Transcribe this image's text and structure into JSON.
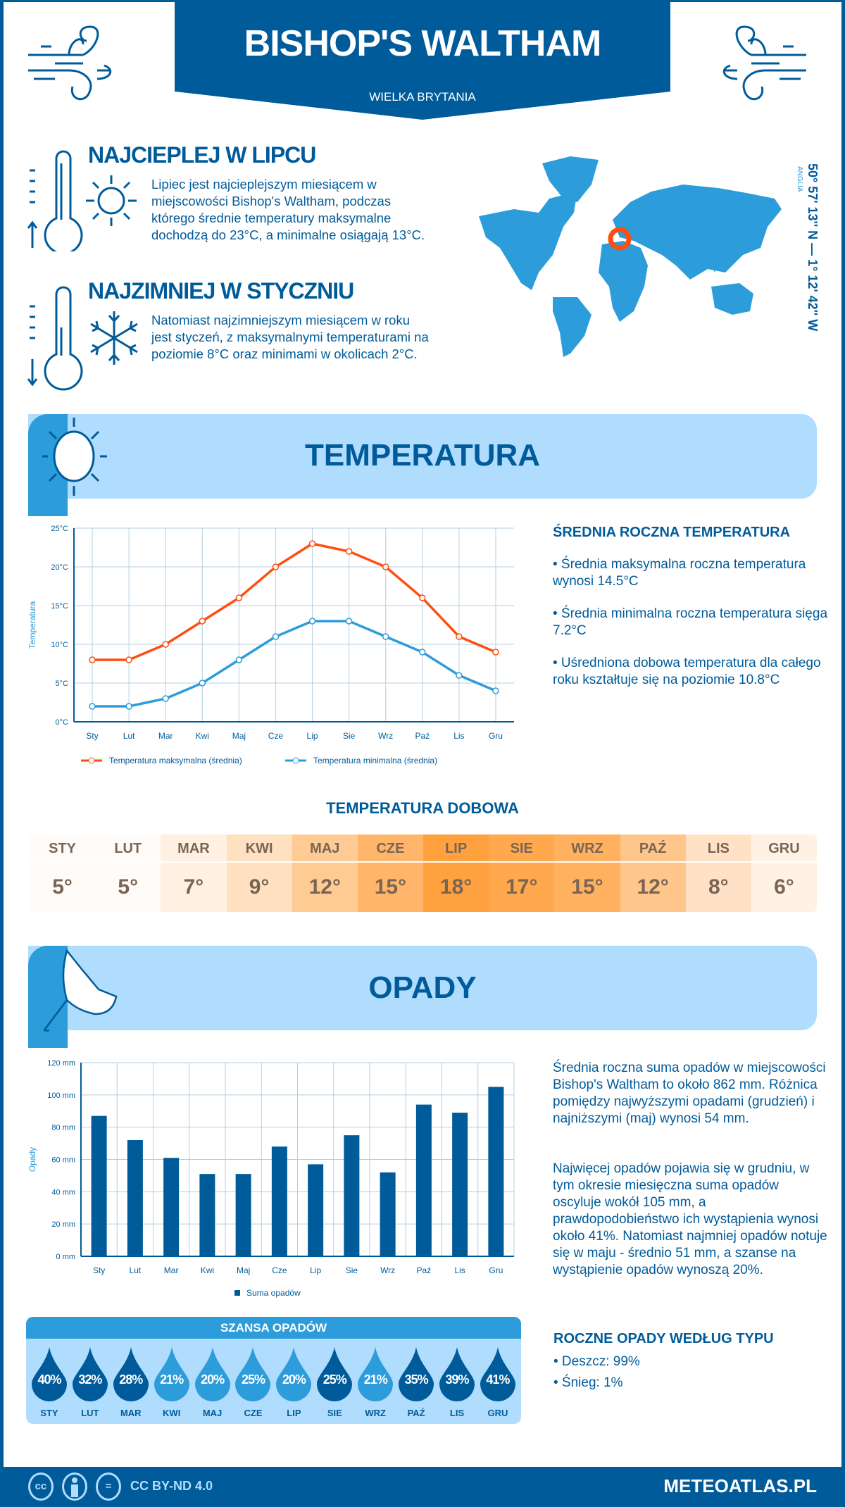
{
  "header": {
    "title": "BISHOP'S WALTHAM",
    "country": "WIELKA BRYTANIA"
  },
  "warmest": {
    "heading": "NAJCIEPLEJ W LIPCU",
    "text": "Lipiec jest najcieplejszym miesiącem w miejscowości Bishop's Waltham, podczas którego średnie temperatury maksymalne dochodzą do 23°C, a minimalne osiągają 13°C."
  },
  "coldest": {
    "heading": "NAJZIMNIEJ W STYCZNIU",
    "text": "Natomiast najzimniejszym miesiącem w roku jest styczeń, z maksymalnymi temperaturami na poziomie 8°C oraz minimami w okolicach 2°C."
  },
  "map": {
    "coords": "50° 57' 13'' N — 1° 12' 42'' W",
    "region": "ANGLIA",
    "marker_color": "#ff4e0f"
  },
  "temperature_section": {
    "title": "TEMPERATURA",
    "summary_title": "ŚREDNIA ROCZNA TEMPERATURA",
    "bullets": [
      "• Średnia maksymalna roczna temperatura wynosi 14.5°C",
      "• Średnia minimalna roczna temperatura sięga 7.2°C",
      "• Uśredniona dobowa temperatura dla całego roku kształtuje się na poziomie 10.8°C"
    ],
    "daily_title": "TEMPERATURA DOBOWA",
    "daily": [
      {
        "month": "STY",
        "value": "5°",
        "color": "#fffbf8"
      },
      {
        "month": "LUT",
        "value": "5°",
        "color": "#fffbf8"
      },
      {
        "month": "MAR",
        "value": "7°",
        "color": "#fff0e1"
      },
      {
        "month": "KWI",
        "value": "9°",
        "color": "#ffe0c0"
      },
      {
        "month": "MAJ",
        "value": "12°",
        "color": "#ffcb94"
      },
      {
        "month": "CZE",
        "value": "15°",
        "color": "#ffb56a"
      },
      {
        "month": "LIP",
        "value": "18°",
        "color": "#ffa13f"
      },
      {
        "month": "SIE",
        "value": "17°",
        "color": "#ffa84e"
      },
      {
        "month": "WRZ",
        "value": "15°",
        "color": "#ffb15f"
      },
      {
        "month": "PAŹ",
        "value": "12°",
        "color": "#ffc68b"
      },
      {
        "month": "LIS",
        "value": "8°",
        "color": "#ffe2c5"
      },
      {
        "month": "GRU",
        "value": "6°",
        "color": "#fff2e5"
      }
    ]
  },
  "precip_section": {
    "title": "OPADY",
    "text1": "Średnia roczna suma opadów w miejscowości Bishop's Waltham to około 862 mm. Różnica pomiędzy najwyższymi opadami (grudzień) i najniższymi (maj) wynosi 54 mm.",
    "text2": "Najwięcej opadów pojawia się w grudniu, w tym okresie miesięczna suma opadów oscyluje wokół 105 mm, a prawdopodobieństwo ich wystąpienia wynosi około 41%. Natomiast najmniej opadów notuje się w maju - średnio 51 mm, a szanse na wystąpienie opadów wynoszą 20%.",
    "type_title": "ROCZNE OPADY WEDŁUG TYPU",
    "types": [
      "• Deszcz: 99%",
      "• Śnieg: 1%"
    ],
    "chance_title": "SZANSA OPADÓW",
    "chance": [
      {
        "month": "STY",
        "value": "40%",
        "color": "#005b9a"
      },
      {
        "month": "LUT",
        "value": "32%",
        "color": "#005b9a"
      },
      {
        "month": "MAR",
        "value": "28%",
        "color": "#005b9a"
      },
      {
        "month": "KWI",
        "value": "21%",
        "color": "#2d9cdb"
      },
      {
        "month": "MAJ",
        "value": "20%",
        "color": "#2d9cdb"
      },
      {
        "month": "CZE",
        "value": "25%",
        "color": "#2d9cdb"
      },
      {
        "month": "LIP",
        "value": "20%",
        "color": "#2d9cdb"
      },
      {
        "month": "SIE",
        "value": "25%",
        "color": "#005b9a"
      },
      {
        "month": "WRZ",
        "value": "21%",
        "color": "#2d9cdb"
      },
      {
        "month": "PAŹ",
        "value": "35%",
        "color": "#005b9a"
      },
      {
        "month": "LIS",
        "value": "39%",
        "color": "#005b9a"
      },
      {
        "month": "GRU",
        "value": "41%",
        "color": "#005b9a"
      }
    ]
  },
  "footer": {
    "license": "CC BY-ND 4.0",
    "site": "METEOATLAS.PL",
    "cc": "cc",
    "eq": "="
  },
  "chart_data": [
    {
      "type": "line",
      "categories": [
        "Sty",
        "Lut",
        "Mar",
        "Kwi",
        "Maj",
        "Cze",
        "Lip",
        "Sie",
        "Wrz",
        "Paź",
        "Lis",
        "Gru"
      ],
      "ylabel": "Temperatura",
      "ylim": [
        0,
        25
      ],
      "yticks": [
        "0°C",
        "5°C",
        "10°C",
        "15°C",
        "20°C",
        "25°C"
      ],
      "grid": true,
      "legend": "bottom",
      "series": [
        {
          "name": "Temperatura maksymalna (średnia)",
          "color": "#ff4e0f",
          "values": [
            8,
            8,
            10,
            13,
            16,
            20,
            23,
            22,
            20,
            16,
            11,
            9
          ]
        },
        {
          "name": "Temperatura minimalna (średnia)",
          "color": "#2d9cdb",
          "values": [
            2,
            2,
            3,
            5,
            8,
            11,
            13,
            13,
            11,
            9,
            6,
            4
          ]
        }
      ]
    },
    {
      "type": "bar",
      "categories": [
        "Sty",
        "Lut",
        "Mar",
        "Kwi",
        "Maj",
        "Cze",
        "Lip",
        "Sie",
        "Wrz",
        "Paź",
        "Lis",
        "Gru"
      ],
      "ylabel": "Opady",
      "ylim": [
        0,
        120
      ],
      "yticks": [
        "0 mm",
        "20 mm",
        "40 mm",
        "60 mm",
        "80 mm",
        "100 mm",
        "120 mm"
      ],
      "grid": true,
      "legend": "bottom",
      "series": [
        {
          "name": "Suma opadów",
          "color": "#005b9a",
          "values": [
            87,
            72,
            61,
            51,
            51,
            68,
            57,
            75,
            52,
            94,
            89,
            105
          ]
        }
      ]
    }
  ]
}
